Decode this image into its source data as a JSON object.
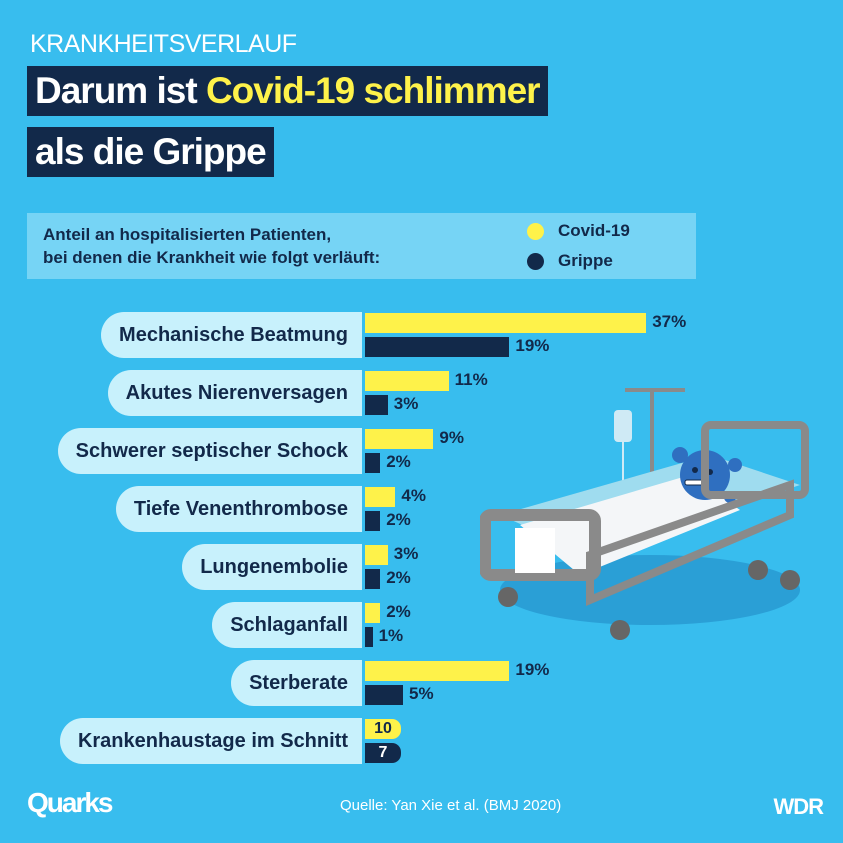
{
  "header": {
    "kicker": "KRANKHEITSVERLAUF",
    "title_part1": "Darum ist ",
    "title_highlight": "Covid-19 schlimmer",
    "title_line2": "als die Grippe"
  },
  "legend": {
    "subtitle_line1": "Anteil an hospitalisierten Patienten,",
    "subtitle_line2": "bei denen die Krankheit wie folgt verläuft:",
    "covid": "Covid-19",
    "grippe": "Grippe"
  },
  "colors": {
    "background": "#38bdee",
    "covid": "#fef24a",
    "grippe": "#12294a",
    "label_pill": "#c8f1fc"
  },
  "chart_data": {
    "type": "bar",
    "orientation": "horizontal",
    "unit": "%",
    "categories": [
      "Mechanische Beatmung",
      "Akutes Nierenversagen",
      "Schwerer septischer Schock",
      "Tiefe Venenthrombose",
      "Lungenembolie",
      "Schlaganfall",
      "Sterberate"
    ],
    "series": [
      {
        "name": "Covid-19",
        "values": [
          37,
          11,
          9,
          4,
          3,
          2,
          19
        ],
        "labels": [
          "37%",
          "11%",
          "9%",
          "4%",
          "3%",
          "2%",
          "19%"
        ]
      },
      {
        "name": "Grippe",
        "values": [
          19,
          3,
          2,
          2,
          2,
          1,
          5
        ],
        "labels": [
          "19%",
          "3%",
          "2%",
          "2%",
          "2%",
          "1%",
          "5%"
        ]
      }
    ],
    "extra_row": {
      "category": "Krankenhaustage im Schnitt",
      "covid": "10",
      "grippe": "7"
    }
  },
  "footer": {
    "logo": "Quarks",
    "source": "Quelle: Yan Xie et al. (BMJ 2020)",
    "brand": "WDR"
  },
  "illustration": {
    "icon": "hospital-bed-virus-icon"
  }
}
